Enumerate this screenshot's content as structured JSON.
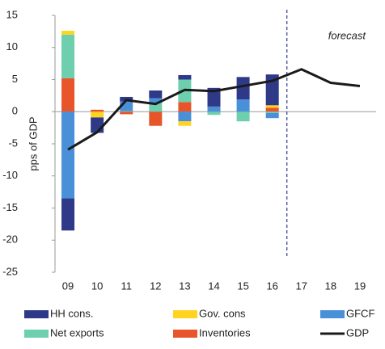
{
  "chart_data": {
    "type": "bar",
    "stacked": true,
    "y_label": "pps of GDP",
    "annotation": "forecast",
    "categories": [
      "09",
      "10",
      "11",
      "12",
      "13",
      "14",
      "15",
      "16",
      "17",
      "18",
      "19"
    ],
    "forecast_after": "16",
    "series": [
      {
        "name": "HH cons.",
        "color": "#2e3a87",
        "values": [
          -5.0,
          -2.4,
          0.7,
          1.2,
          0.7,
          2.9,
          3.5,
          4.8,
          null,
          null,
          null
        ]
      },
      {
        "name": "Gov. cons",
        "color": "#ffd320",
        "values": [
          0.6,
          -0.9,
          0.0,
          0.0,
          -0.7,
          0.0,
          0.0,
          0.4,
          null,
          null,
          null
        ]
      },
      {
        "name": "GFCF",
        "color": "#4a90d9",
        "values": [
          -13.5,
          0.0,
          1.5,
          0.7,
          -1.5,
          0.8,
          1.9,
          -0.8,
          null,
          null,
          null
        ]
      },
      {
        "name": "Net exports",
        "color": "#6dcfae",
        "values": [
          6.8,
          0.0,
          0.1,
          1.4,
          3.5,
          -0.5,
          -1.5,
          -0.2,
          null,
          null,
          null
        ]
      },
      {
        "name": "Inventories",
        "color": "#e8552a",
        "values": [
          5.2,
          0.3,
          -0.4,
          -2.2,
          1.5,
          0.0,
          0.0,
          0.6,
          null,
          null,
          null
        ]
      },
      {
        "name": "GDP",
        "color": "#1a1a1a",
        "type": "line",
        "values": [
          -5.9,
          -3.2,
          1.8,
          1.2,
          3.4,
          3.2,
          4.0,
          4.8,
          6.6,
          4.5,
          4.0
        ]
      }
    ],
    "ylim": [
      -25,
      15
    ],
    "yticks": [
      -25,
      -20,
      -15,
      -10,
      -5,
      0,
      5,
      10,
      15
    ],
    "grid": false
  }
}
